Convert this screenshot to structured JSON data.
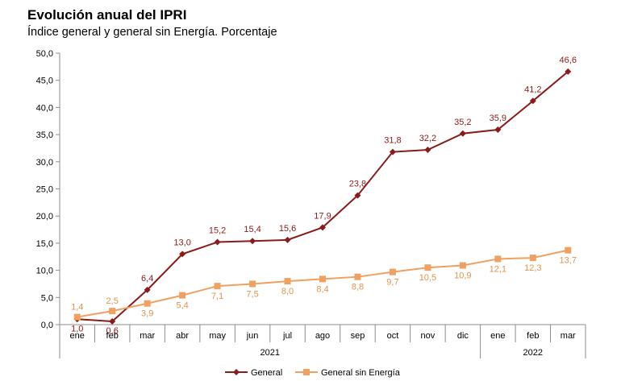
{
  "title": "Evolución anual del IPRI",
  "subtitle": "Índice general y general sin Energía. Porcentaje",
  "chart_data": {
    "type": "line",
    "title": "Evolución anual del IPRI",
    "subtitle": "Índice general y general sin Energía. Porcentaje",
    "categories": [
      "ene",
      "feb",
      "mar",
      "abr",
      "may",
      "jun",
      "jul",
      "ago",
      "sep",
      "oct",
      "nov",
      "dic",
      "ene",
      "feb",
      "mar"
    ],
    "category_groups": [
      {
        "label": "2021",
        "count": 12
      },
      {
        "label": "2022",
        "count": 3
      }
    ],
    "ylim": [
      0,
      50
    ],
    "yticks": [
      0,
      5,
      10,
      15,
      20,
      25,
      30,
      35,
      40,
      45,
      50
    ],
    "ytick_labels": [
      "0,0",
      "5,0",
      "10,0",
      "15,0",
      "20,0",
      "25,0",
      "30,0",
      "35,0",
      "40,0",
      "45,0",
      "50,0"
    ],
    "grid": false,
    "legend_position": "bottom",
    "series": [
      {
        "name": "General",
        "color": "#8B1A1A",
        "marker": "diamond",
        "values": [
          1.0,
          0.6,
          6.4,
          13.0,
          15.2,
          15.4,
          15.6,
          17.9,
          23.8,
          31.8,
          32.2,
          35.2,
          35.9,
          41.2,
          46.6
        ],
        "labels": [
          "1,0",
          "0,6",
          "6,4",
          "13,0",
          "15,2",
          "15,4",
          "15,6",
          "17,9",
          "23,8",
          "31,8",
          "32,2",
          "35,2",
          "35,9",
          "41,2",
          "46,6"
        ]
      },
      {
        "name": "General sin Energía",
        "color": "#F0A060",
        "marker": "square",
        "values": [
          1.4,
          2.5,
          3.9,
          5.4,
          7.1,
          7.5,
          8.0,
          8.4,
          8.8,
          9.7,
          10.5,
          10.9,
          12.1,
          12.3,
          13.7
        ],
        "labels": [
          "1,4",
          "2,5",
          "3,9",
          "5,4",
          "7,1",
          "7,5",
          "8,0",
          "8,4",
          "8,8",
          "9,7",
          "10,5",
          "10,9",
          "12,1",
          "12,3",
          "13,7"
        ]
      }
    ]
  }
}
